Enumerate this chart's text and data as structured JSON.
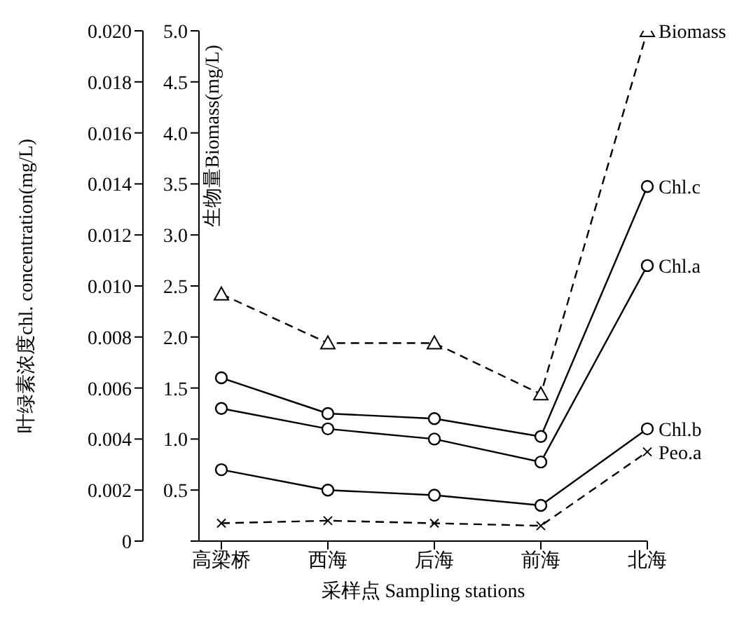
{
  "chart_data": {
    "type": "line",
    "xlabel": "采样点 Sampling stations",
    "ylabel": "叶绿素浓度chl. concentration(mg/L)",
    "y2label": "生物量Biomass(mg/L)",
    "categories": [
      "高梁桥",
      "西海",
      "后海",
      "前海",
      "北海"
    ],
    "ylim": [
      0,
      0.02
    ],
    "yticks": [
      "0",
      0.002,
      0.004,
      0.006,
      0.008,
      {
        "value": 0.01,
        "label": "0.010"
      },
      0.012,
      0.014,
      0.016,
      0.018,
      {
        "value": 0.02,
        "label": "0.020"
      }
    ],
    "y2lim": [
      0,
      5
    ],
    "y2ticks": [
      {
        "value": 0,
        "label": null
      },
      {
        "value": 0.5,
        "label": "0.5"
      },
      {
        "value": 1,
        "label": "1.0"
      },
      {
        "value": 1.5,
        "label": "1.5"
      },
      {
        "value": 2,
        "label": "2.0"
      },
      {
        "value": 2.5,
        "label": "2.5"
      },
      {
        "value": 3,
        "label": "3.0"
      },
      {
        "value": 3.5,
        "label": "3.5"
      },
      {
        "value": 4,
        "label": "4.0"
      },
      {
        "value": 4.5,
        "label": "4.5"
      },
      {
        "value": 5,
        "label": "5.0"
      }
    ],
    "grid": false,
    "legend": false,
    "series": [
      {
        "name": "Biomass",
        "color": "#000000",
        "axis": "y2",
        "marker": "triangle",
        "line_style": "dashed",
        "values": [
          2.42,
          1.94,
          1.94,
          1.44,
          5.0
        ]
      },
      {
        "name": "Chl.c",
        "color": "#000000",
        "marker": "circle",
        "line_style": "solid",
        "values": [
          0.0064,
          0.005,
          0.0048,
          0.0041,
          0.0139
        ]
      },
      {
        "name": "Chl.a",
        "color": "#000000",
        "marker": "circle",
        "line_style": "solid",
        "values": [
          0.0052,
          0.0044,
          0.004,
          0.0031,
          0.0108
        ]
      },
      {
        "name": "Chl.b",
        "color": "#000000",
        "marker": "circle",
        "line_style": "solid",
        "values": [
          0.0028,
          0.002,
          0.0018,
          0.0014,
          0.0044
        ]
      },
      {
        "name": "Peo.a",
        "color": "#000000",
        "marker": "cross",
        "line_style": "dashed",
        "values": [
          0.0007,
          0.0008,
          0.0007,
          0.0006,
          0.0035
        ]
      }
    ]
  }
}
